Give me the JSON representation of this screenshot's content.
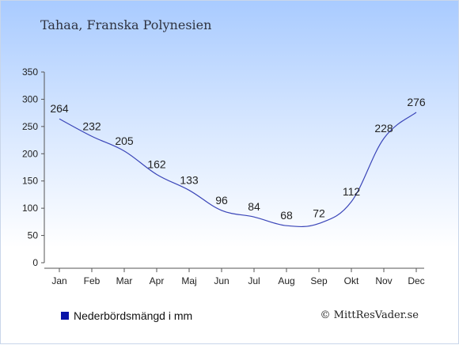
{
  "header": {
    "title": "Tahaa, Franska Polynesien"
  },
  "footer": {
    "legend_label": "Nederbördsmängd i mm",
    "credit": "© MittResVader.se"
  },
  "colors": {
    "line": "#3a45b8",
    "legend": "#0a14a8",
    "axis": "#555555",
    "text": "#222222"
  },
  "chart_data": {
    "type": "line",
    "title": "Tahaa, Franska Polynesien",
    "xlabel": "",
    "ylabel": "",
    "categories": [
      "Jan",
      "Feb",
      "Mar",
      "Apr",
      "Maj",
      "Jun",
      "Jul",
      "Aug",
      "Sep",
      "Okt",
      "Nov",
      "Dec"
    ],
    "series": [
      {
        "name": "Nederbördsmängd i mm",
        "values": [
          264,
          232,
          205,
          162,
          133,
          96,
          84,
          68,
          72,
          112,
          228,
          276
        ]
      }
    ],
    "yticks": [
      0,
      50,
      100,
      150,
      200,
      250,
      300,
      350
    ],
    "ylim": [
      0,
      350
    ],
    "grid": false,
    "legend": "bottom-left"
  }
}
